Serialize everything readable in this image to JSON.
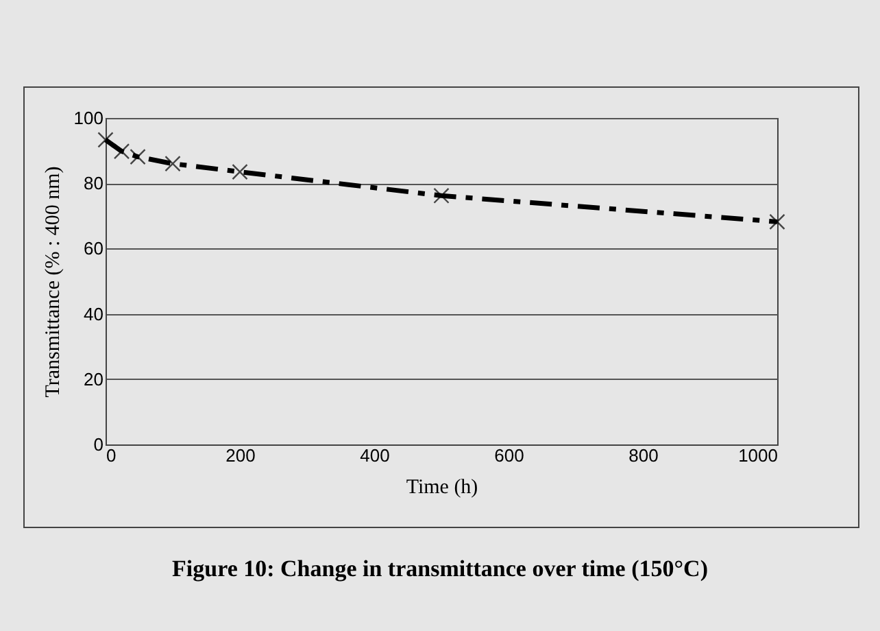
{
  "chart_data": {
    "type": "line",
    "title": "Figure 10: Change in transmittance over time (150°C)",
    "xlabel": "Time (h)",
    "ylabel": "Transmittance (% : 400 nm)",
    "x": [
      0,
      24,
      48,
      100,
      200,
      500,
      1000
    ],
    "series": [
      {
        "color": "#000000",
        "values": [
          93.3,
          89.8,
          88.1,
          86.0,
          83.5,
          76.2,
          68.2
        ]
      }
    ],
    "xlim": [
      0,
      1000
    ],
    "xticks": [
      0,
      200,
      400,
      600,
      800,
      1000
    ],
    "ylim": [
      0,
      100
    ],
    "yticks": [
      0,
      20,
      40,
      60,
      80,
      100
    ],
    "grid": "y",
    "legend": false,
    "marker": "cross",
    "line_style": "dashed"
  }
}
